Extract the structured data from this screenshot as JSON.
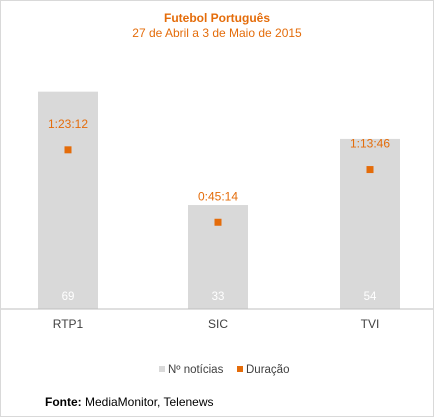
{
  "chart_data": {
    "type": "bar",
    "title": "Futebol Português",
    "subtitle": "27 de Abril a 3 de Maio de 2015",
    "categories": [
      "RTP1",
      "SIC",
      "TVI"
    ],
    "series": [
      {
        "name": "Nº notícias",
        "values": [
          69,
          33,
          54
        ],
        "labels": [
          "69",
          "33",
          "54"
        ]
      },
      {
        "name": "Duração",
        "values": [
          5.0533,
          2.7539,
          4.4267
        ],
        "labels": [
          "1:23:12",
          "0:45:14",
          "1:13:46"
        ]
      }
    ],
    "ylim": [
      0,
      80
    ],
    "grid": false,
    "legend": "bottom-center"
  },
  "colors": {
    "bar": "#d9d9d9",
    "accent": "#e46c0a",
    "axis": "#bfbfbf",
    "text": "#404040"
  },
  "source": {
    "label": "Fonte:",
    "text": "MediaMonitor, Telenews"
  }
}
